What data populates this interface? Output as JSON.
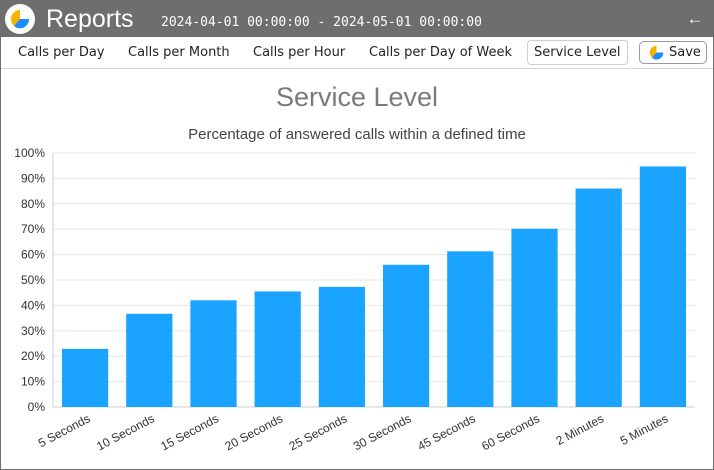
{
  "window": {
    "title": "Reports",
    "date_range": "2024-04-01 00:00:00 - 2024-05-01 00:00:00",
    "back_icon": "arrow-left-icon",
    "logo_icon": "pie-chart-icon"
  },
  "tabs": [
    {
      "label": "Calls per Day",
      "active": false
    },
    {
      "label": "Calls per Month",
      "active": false
    },
    {
      "label": "Calls per Hour",
      "active": false
    },
    {
      "label": "Calls per Day of Week",
      "active": false
    },
    {
      "label": "Service Level",
      "active": true
    }
  ],
  "toolbar": {
    "save_label": "Save",
    "save_icon": "pie-chart-icon"
  },
  "colors": {
    "titlebar": "#6e6e6e",
    "bar": "#1aa3ff",
    "logo_yellow": "#f5b400",
    "logo_blue": "#1a8cff"
  },
  "chart_data": {
    "type": "bar",
    "title": "Service Level",
    "subtitle": "Percentage of answered calls within a defined time",
    "categories": [
      "5 Seconds",
      "10 Seconds",
      "15 Seconds",
      "20 Seconds",
      "25 Seconds",
      "30 Seconds",
      "45 Seconds",
      "60 Seconds",
      "2 Minutes",
      "5 Minutes"
    ],
    "values": [
      22.9,
      36.7,
      42.0,
      45.5,
      47.3,
      56.0,
      61.3,
      70.2,
      86.0,
      94.7
    ],
    "ylim": [
      0,
      100
    ],
    "yticks": [
      "0%",
      "10%",
      "20%",
      "30%",
      "40%",
      "50%",
      "60%",
      "70%",
      "80%",
      "90%",
      "100%"
    ],
    "ytick_values": [
      0,
      10,
      20,
      30,
      40,
      50,
      60,
      70,
      80,
      90,
      100
    ],
    "xlabel": "",
    "ylabel": "",
    "grid": true,
    "legend": "none"
  }
}
